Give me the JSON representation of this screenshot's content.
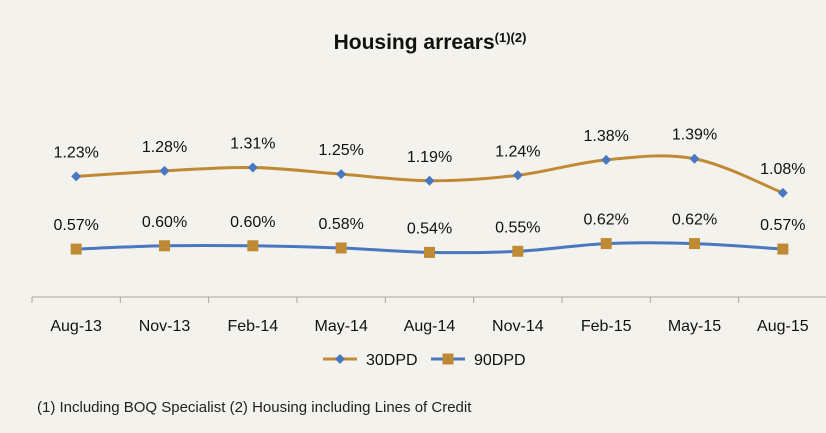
{
  "chart_data": {
    "type": "line",
    "title": "Housing arrears",
    "title_superscript": "(1)(2)",
    "categories": [
      "Aug-13",
      "Nov-13",
      "Feb-14",
      "May-14",
      "Aug-14",
      "Nov-14",
      "Feb-15",
      "May-15",
      "Aug-15"
    ],
    "series": [
      {
        "name": "30DPD",
        "marker": "diamond",
        "values": [
          1.23,
          1.28,
          1.31,
          1.25,
          1.19,
          1.24,
          1.38,
          1.39,
          1.08
        ],
        "labels": [
          "1.23%",
          "1.28%",
          "1.31%",
          "1.25%",
          "1.19%",
          "1.24%",
          "1.38%",
          "1.39%",
          "1.08%"
        ],
        "line_color": "#c08a35",
        "marker_color": "#4a78c0"
      },
      {
        "name": "90DPD",
        "marker": "square",
        "values": [
          0.57,
          0.6,
          0.6,
          0.58,
          0.54,
          0.55,
          0.62,
          0.62,
          0.57
        ],
        "labels": [
          "0.57%",
          "0.60%",
          "0.60%",
          "0.58%",
          "0.54%",
          "0.55%",
          "0.62%",
          "0.62%",
          "0.57%"
        ],
        "line_color": "#4a78c0",
        "marker_color": "#c08a35"
      }
    ],
    "legend_position": "bottom",
    "grid": false
  },
  "footnote": "(1) Including BOQ Specialist  (2) Housing including Lines of Credit"
}
